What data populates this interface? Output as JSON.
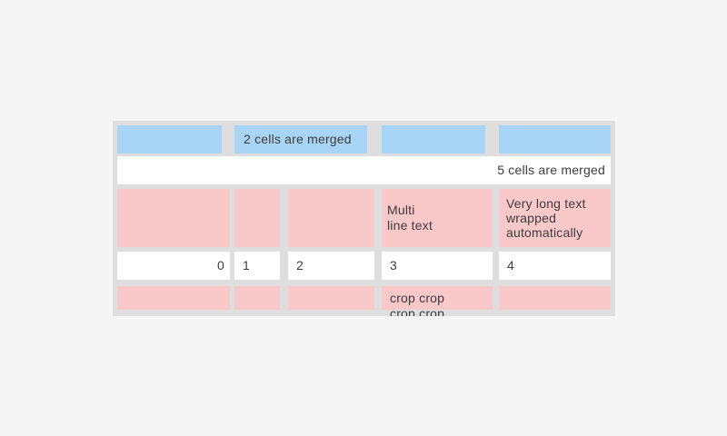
{
  "colors": {
    "cell_blue": "#a8d5f6",
    "cell_pink": "#f9c8c8",
    "cell_white": "#ffffff",
    "table_background": "#dedede",
    "page_background": "#f5f5f5",
    "text": "#3c3c3c"
  },
  "table": {
    "header_row": {
      "merged_cell_label": "2 cells are merged"
    },
    "full_span_row": {
      "label": "5 cells are merged"
    },
    "pink_row": {
      "multi_line_cell": "Multi\nline text",
      "wrapped_cell": "Very long text wrapped automatically"
    },
    "numbers_row": {
      "cells": [
        "0",
        "1",
        "2",
        "3",
        "4"
      ]
    },
    "crop_row": {
      "crop_cell": "crop crop crop crop"
    }
  }
}
